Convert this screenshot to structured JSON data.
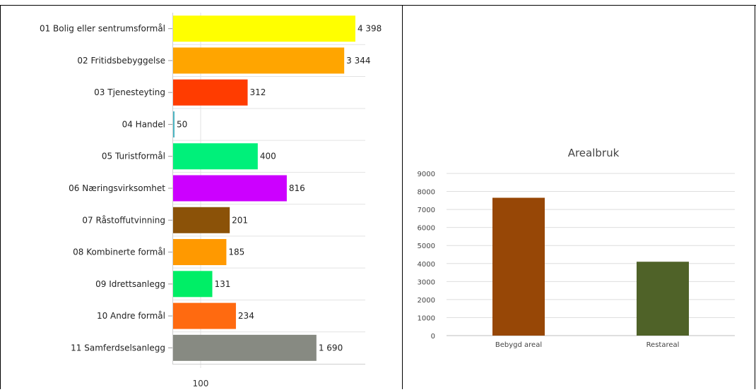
{
  "chart_data": [
    {
      "type": "bar",
      "orientation": "horizontal",
      "categories": [
        "01 Bolig eller sentrumsformål",
        "02 Fritidsbebyggelse",
        "03 Tjenesteyting",
        "04 Handel",
        "05 Turistformål",
        "06 Næringsvirksomhet",
        "07 Råstoffutvinning",
        "08 Kombinerte formål",
        "09 Idrettsanlegg",
        "10 Andre formål",
        "11 Samferdselsanlegg"
      ],
      "values": [
        4398,
        3344,
        312,
        50,
        400,
        816,
        201,
        185,
        131,
        234,
        1690
      ],
      "value_labels": [
        "4 398",
        "3 344",
        "312",
        "50",
        "400",
        "816",
        "201",
        "185",
        "131",
        "234",
        "1 690"
      ],
      "colors": [
        "#ffff00",
        "#ffa500",
        "#ff3c00",
        "#4db6c4",
        "#00f07a",
        "#cc00ff",
        "#8b5208",
        "#ff9900",
        "#00ee66",
        "#ff6a10",
        "#878a82"
      ],
      "x_scale": "log",
      "x_ticks": [
        100
      ],
      "x_tick_labels": [
        "100"
      ],
      "xlim": [
        50,
        4800
      ],
      "grid": true,
      "title": "",
      "xlabel": "",
      "ylabel": ""
    },
    {
      "type": "bar",
      "title": "Arealbruk",
      "categories": [
        "Bebygd areal",
        "Restareal"
      ],
      "values": [
        7650,
        4100
      ],
      "colors": [
        "#974706",
        "#4f6228"
      ],
      "ylim": [
        0,
        9000
      ],
      "y_ticks": [
        0,
        1000,
        2000,
        3000,
        4000,
        5000,
        6000,
        7000,
        8000,
        9000
      ],
      "grid": true,
      "xlabel": "",
      "ylabel": ""
    }
  ]
}
